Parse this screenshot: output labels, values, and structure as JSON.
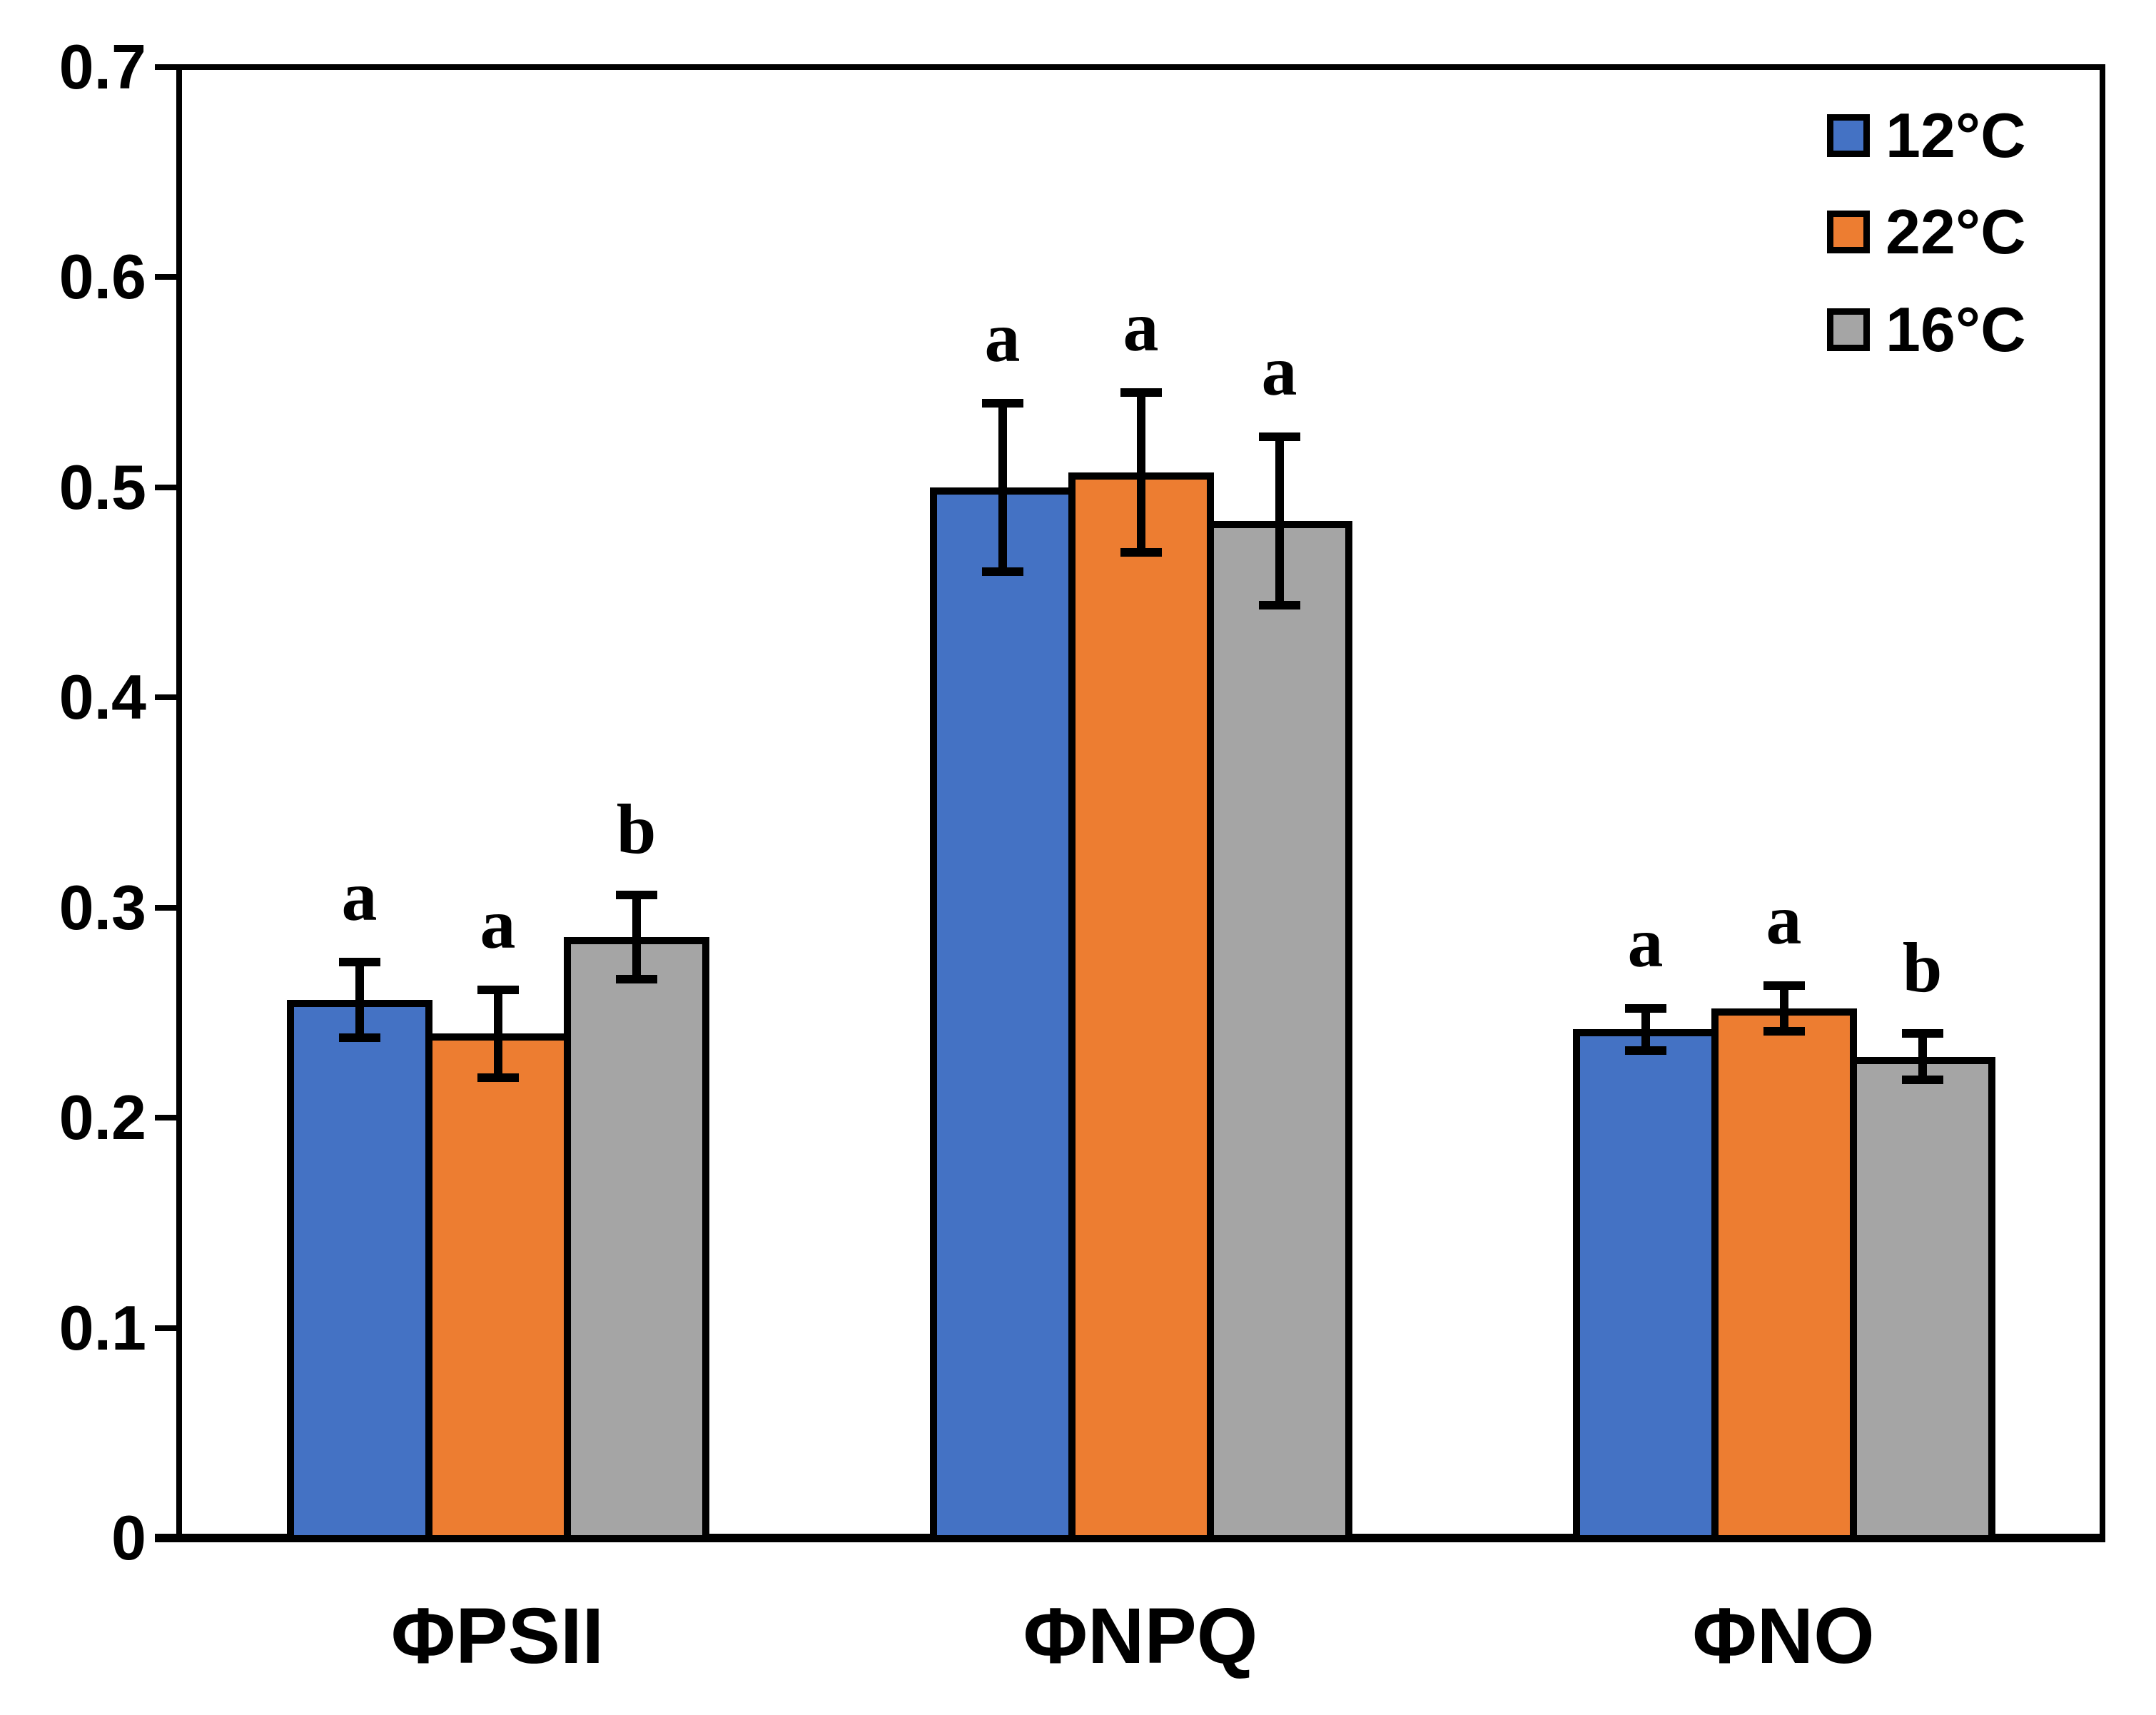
{
  "chart_data": {
    "type": "bar",
    "title": "",
    "xlabel": "",
    "ylabel": "",
    "categories": [
      "ΦPSII",
      "ΦNPQ",
      "ΦNO"
    ],
    "series": [
      {
        "name": "12°C",
        "color": "#4472C4",
        "values": [
          0.256,
          0.5,
          0.242
        ],
        "errors": [
          0.018,
          0.04,
          0.01
        ],
        "sig_letters": [
          "a",
          "a",
          "a"
        ]
      },
      {
        "name": "22°C",
        "color": "#ED7D31",
        "values": [
          0.24,
          0.507,
          0.252
        ],
        "errors": [
          0.021,
          0.038,
          0.011
        ],
        "sig_letters": [
          "a",
          "a",
          "a"
        ]
      },
      {
        "name": "16°C",
        "color": "#A5A5A5",
        "values": [
          0.286,
          0.484,
          0.229
        ],
        "errors": [
          0.02,
          0.04,
          0.011
        ],
        "sig_letters": [
          "b",
          "a",
          "b"
        ]
      }
    ],
    "ylim": [
      0,
      0.7
    ],
    "yticks": [
      "0",
      "0.1",
      "0.2",
      "0.3",
      "0.4",
      "0.5",
      "0.6",
      "0.7"
    ],
    "grid": false,
    "legend_position": "top-right",
    "error_bars": true,
    "axis_color": "#000000"
  }
}
